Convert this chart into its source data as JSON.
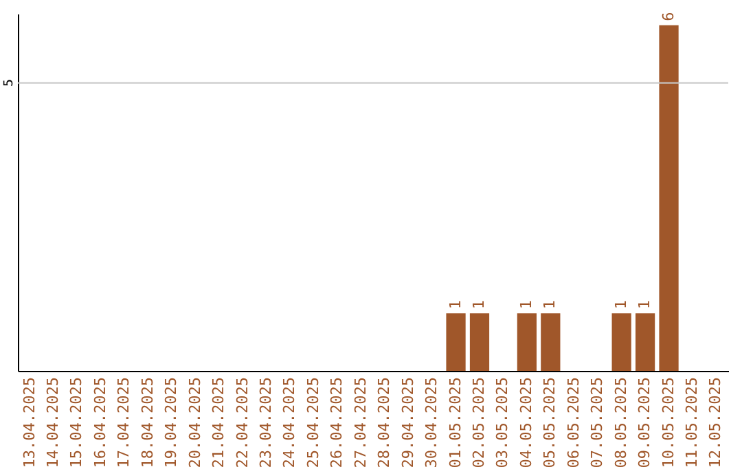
{
  "chart_data": {
    "type": "bar",
    "categories": [
      "13.04.2025",
      "14.04.2025",
      "15.04.2025",
      "16.04.2025",
      "17.04.2025",
      "18.04.2025",
      "19.04.2025",
      "20.04.2025",
      "21.04.2025",
      "22.04.2025",
      "23.04.2025",
      "24.04.2025",
      "25.04.2025",
      "26.04.2025",
      "27.04.2025",
      "28.04.2025",
      "29.04.2025",
      "30.04.2025",
      "01.05.2025",
      "02.05.2025",
      "03.05.2025",
      "04.05.2025",
      "05.05.2025",
      "06.05.2025",
      "07.05.2025",
      "08.05.2025",
      "09.05.2025",
      "10.05.2025",
      "11.05.2025",
      "12.05.2025"
    ],
    "values": [
      null,
      null,
      null,
      null,
      null,
      null,
      null,
      null,
      null,
      null,
      null,
      null,
      null,
      null,
      null,
      null,
      null,
      null,
      1,
      1,
      null,
      1,
      1,
      null,
      null,
      1,
      1,
      6,
      null,
      null
    ],
    "value_labels": [
      null,
      null,
      null,
      null,
      null,
      null,
      null,
      null,
      null,
      null,
      null,
      null,
      null,
      null,
      null,
      null,
      null,
      null,
      "1",
      "1",
      null,
      "1",
      "1",
      null,
      null,
      "1",
      "1",
      "6",
      null,
      null
    ],
    "color": "#a0572a",
    "ylim": [
      0,
      6.2
    ],
    "ref_lines": [
      {
        "axis": "y",
        "value": 5,
        "label": "5",
        "color": "#c8c8c8"
      }
    ]
  }
}
